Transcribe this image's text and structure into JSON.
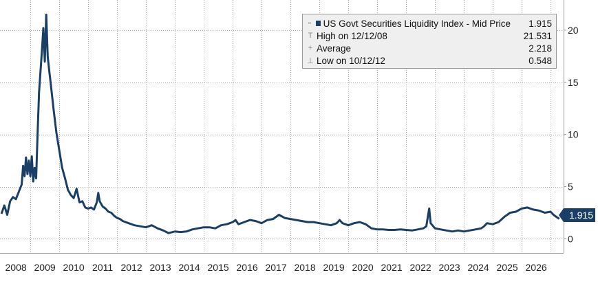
{
  "chart_data": {
    "type": "line",
    "series": [
      {
        "name": "US Govt Securities Liquidity Index - Mid Price",
        "color": "#1a3f66",
        "points": [
          [
            2007.0,
            2.4
          ],
          [
            2007.1,
            3.2
          ],
          [
            2007.2,
            2.3
          ],
          [
            2007.3,
            3.6
          ],
          [
            2007.4,
            4.0
          ],
          [
            2007.5,
            3.8
          ],
          [
            2007.6,
            4.5
          ],
          [
            2007.7,
            5.2
          ],
          [
            2007.75,
            7.0
          ],
          [
            2007.8,
            6.0
          ],
          [
            2007.85,
            7.8
          ],
          [
            2007.9,
            6.2
          ],
          [
            2007.95,
            7.5
          ],
          [
            2008.0,
            6.0
          ],
          [
            2008.05,
            7.9
          ],
          [
            2008.1,
            5.5
          ],
          [
            2008.15,
            6.8
          ],
          [
            2008.2,
            5.8
          ],
          [
            2008.25,
            10.0
          ],
          [
            2008.3,
            14.0
          ],
          [
            2008.4,
            18.0
          ],
          [
            2008.45,
            20.2
          ],
          [
            2008.5,
            17.0
          ],
          [
            2008.55,
            21.5
          ],
          [
            2008.6,
            17.5
          ],
          [
            2008.65,
            16.2
          ],
          [
            2008.7,
            15.0
          ],
          [
            2008.8,
            12.5
          ],
          [
            2008.9,
            10.2
          ],
          [
            2009.0,
            8.5
          ],
          [
            2009.1,
            6.8
          ],
          [
            2009.2,
            5.8
          ],
          [
            2009.3,
            4.7
          ],
          [
            2009.4,
            4.2
          ],
          [
            2009.5,
            3.9
          ],
          [
            2009.6,
            4.8
          ],
          [
            2009.7,
            3.5
          ],
          [
            2009.8,
            3.6
          ],
          [
            2009.9,
            3.0
          ],
          [
            2010.0,
            2.9
          ],
          [
            2010.1,
            3.0
          ],
          [
            2010.2,
            2.8
          ],
          [
            2010.3,
            3.5
          ],
          [
            2010.35,
            4.4
          ],
          [
            2010.4,
            3.6
          ],
          [
            2010.5,
            3.1
          ],
          [
            2010.6,
            2.9
          ],
          [
            2010.7,
            2.6
          ],
          [
            2010.8,
            2.5
          ],
          [
            2010.9,
            2.2
          ],
          [
            2011.0,
            2.0
          ],
          [
            2011.1,
            1.9
          ],
          [
            2011.2,
            1.7
          ],
          [
            2011.4,
            1.5
          ],
          [
            2011.6,
            1.3
          ],
          [
            2011.8,
            1.2
          ],
          [
            2012.0,
            1.1
          ],
          [
            2012.2,
            1.3
          ],
          [
            2012.4,
            1.0
          ],
          [
            2012.6,
            0.8
          ],
          [
            2012.78,
            0.548
          ],
          [
            2013.0,
            0.7
          ],
          [
            2013.2,
            0.65
          ],
          [
            2013.4,
            0.7
          ],
          [
            2013.6,
            0.9
          ],
          [
            2013.8,
            1.0
          ],
          [
            2014.0,
            1.1
          ],
          [
            2014.2,
            1.1
          ],
          [
            2014.4,
            1.0
          ],
          [
            2014.6,
            1.3
          ],
          [
            2014.8,
            1.4
          ],
          [
            2015.0,
            1.6
          ],
          [
            2015.1,
            1.8
          ],
          [
            2015.2,
            1.4
          ],
          [
            2015.4,
            1.6
          ],
          [
            2015.6,
            1.8
          ],
          [
            2015.8,
            1.7
          ],
          [
            2016.0,
            1.5
          ],
          [
            2016.2,
            1.8
          ],
          [
            2016.4,
            1.9
          ],
          [
            2016.6,
            2.3
          ],
          [
            2016.8,
            2.0
          ],
          [
            2017.0,
            1.9
          ],
          [
            2017.2,
            1.8
          ],
          [
            2017.4,
            1.7
          ],
          [
            2017.6,
            1.6
          ],
          [
            2017.8,
            1.6
          ],
          [
            2018.0,
            1.5
          ],
          [
            2018.2,
            1.4
          ],
          [
            2018.4,
            1.3
          ],
          [
            2018.6,
            1.5
          ],
          [
            2018.7,
            1.8
          ],
          [
            2018.8,
            1.5
          ],
          [
            2019.0,
            1.3
          ],
          [
            2019.2,
            1.5
          ],
          [
            2019.4,
            1.6
          ],
          [
            2019.6,
            1.4
          ],
          [
            2019.8,
            1.0
          ],
          [
            2020.0,
            0.9
          ],
          [
            2020.2,
            0.9
          ],
          [
            2020.4,
            0.85
          ],
          [
            2020.6,
            0.85
          ],
          [
            2020.8,
            0.9
          ],
          [
            2021.0,
            0.85
          ],
          [
            2021.2,
            0.8
          ],
          [
            2021.4,
            0.9
          ],
          [
            2021.6,
            1.0
          ],
          [
            2021.7,
            1.2
          ],
          [
            2021.8,
            2.9
          ],
          [
            2021.85,
            1.5
          ],
          [
            2022.0,
            1.0
          ],
          [
            2022.2,
            0.9
          ],
          [
            2022.4,
            0.8
          ],
          [
            2022.6,
            0.7
          ],
          [
            2022.8,
            0.8
          ],
          [
            2023.0,
            0.7
          ],
          [
            2023.2,
            0.8
          ],
          [
            2023.4,
            0.9
          ],
          [
            2023.6,
            1.0
          ],
          [
            2023.7,
            1.2
          ],
          [
            2023.8,
            1.5
          ],
          [
            2024.0,
            1.4
          ],
          [
            2024.2,
            1.6
          ],
          [
            2024.4,
            2.1
          ],
          [
            2024.6,
            2.5
          ],
          [
            2024.8,
            2.6
          ],
          [
            2025.0,
            2.9
          ],
          [
            2025.2,
            3.0
          ],
          [
            2025.4,
            2.8
          ],
          [
            2025.6,
            2.7
          ],
          [
            2025.8,
            2.5
          ],
          [
            2026.0,
            2.6
          ],
          [
            2026.1,
            2.3
          ],
          [
            2026.2,
            2.1
          ],
          [
            2026.3,
            1.915
          ]
        ]
      }
    ],
    "xlim": [
      2006.95,
      2026.45
    ],
    "ylim": [
      -0.5,
      22.5
    ],
    "x_ticks": [
      {
        "value": 2007.5,
        "label": "2008"
      },
      {
        "value": 2008.5,
        "label": "2009"
      },
      {
        "value": 2009.5,
        "label": "2010"
      },
      {
        "value": 2010.5,
        "label": "2011"
      },
      {
        "value": 2011.5,
        "label": "2012"
      },
      {
        "value": 2012.5,
        "label": "2013"
      },
      {
        "value": 2013.5,
        "label": "2014"
      },
      {
        "value": 2014.5,
        "label": "2015"
      },
      {
        "value": 2015.5,
        "label": "2016"
      },
      {
        "value": 2016.5,
        "label": "2017"
      },
      {
        "value": 2017.5,
        "label": "2018"
      },
      {
        "value": 2018.5,
        "label": "2019"
      },
      {
        "value": 2019.5,
        "label": "2020"
      },
      {
        "value": 2020.5,
        "label": "2021"
      },
      {
        "value": 2021.5,
        "label": "2022"
      },
      {
        "value": 2022.5,
        "label": "2023"
      },
      {
        "value": 2023.5,
        "label": "2024"
      },
      {
        "value": 2024.5,
        "label": "2025"
      },
      {
        "value": 2025.5,
        "label": "2026"
      }
    ],
    "x_gridlines": [
      2008.0,
      2009.0,
      2010.0,
      2011.0,
      2012.0,
      2013.0,
      2014.0,
      2015.0,
      2016.0,
      2017.0,
      2018.0,
      2019.0,
      2020.0,
      2021.0,
      2022.0,
      2023.0,
      2024.0,
      2025.0,
      2026.0
    ],
    "y_ticks": [
      0,
      5,
      10,
      15,
      20
    ],
    "grid": true,
    "y_axis_side": "right",
    "legend_position": "top-right",
    "last_value": "1.915"
  },
  "legend": {
    "rows": [
      {
        "mark": "swatch",
        "label": "US Govt Securities Liquidity Index - Mid Price",
        "value": "1.915"
      },
      {
        "mark": "T",
        "label": "High on 12/12/08",
        "value": "21.531"
      },
      {
        "mark": "+",
        "label": "Average",
        "value": "2.218"
      },
      {
        "mark": "⊥",
        "label": "Low on 10/12/12",
        "value": "0.548"
      }
    ]
  }
}
